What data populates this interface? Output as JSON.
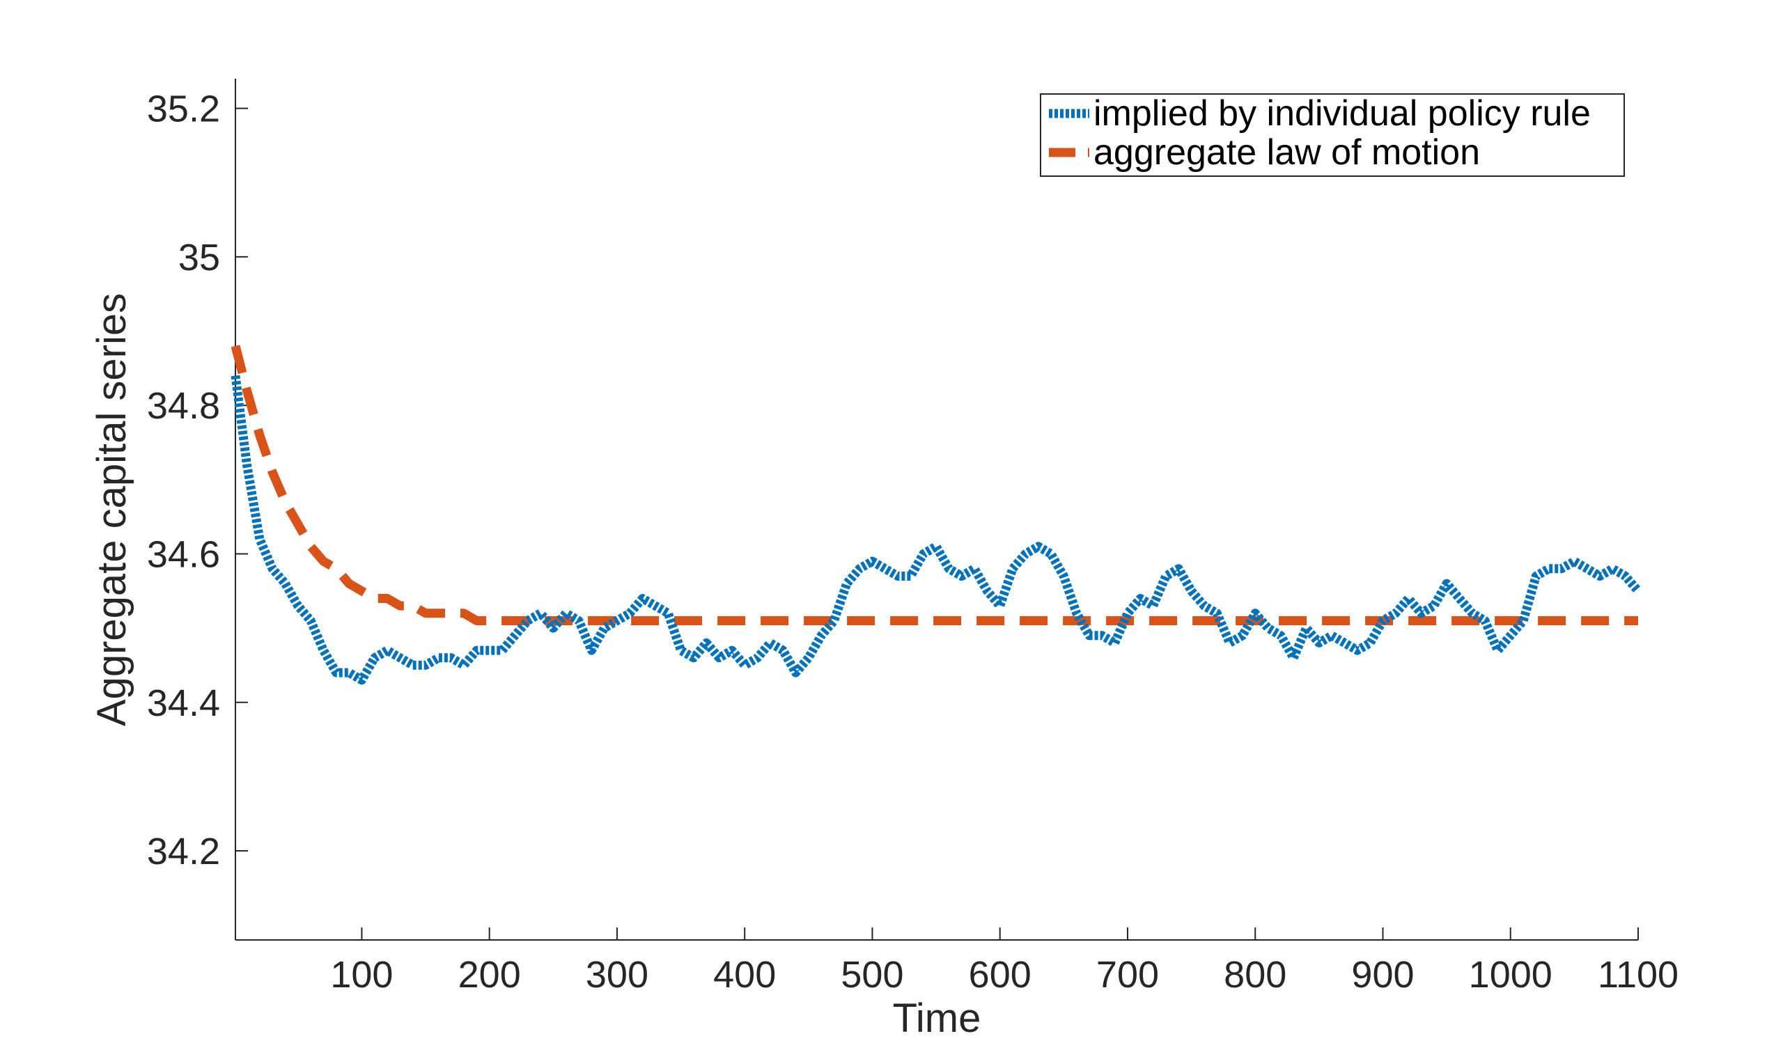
{
  "chart_data": {
    "type": "line",
    "title": "",
    "xlabel": "Time",
    "ylabel": "Aggregate capital series",
    "xlim": [
      1,
      1100
    ],
    "ylim": [
      34.08,
      35.24
    ],
    "xticks": [
      100,
      200,
      300,
      400,
      500,
      600,
      700,
      800,
      900,
      1000,
      1100
    ],
    "xtick_labels": [
      "100",
      "200",
      "300",
      "400",
      "500",
      "600",
      "700",
      "800",
      "900",
      "1000",
      "1100"
    ],
    "yticks": [
      34.2,
      34.4,
      34.6,
      34.8,
      35.0,
      35.2
    ],
    "ytick_labels": [
      "34.2",
      "34.4",
      "34.6",
      "34.8",
      "35",
      "35.2"
    ],
    "grid": false,
    "legend_position": "top-right",
    "series": [
      {
        "name": "implied by individual policy rule",
        "color": "#0072BD",
        "line_style": "dotted",
        "x": [
          1,
          10,
          20,
          30,
          40,
          50,
          60,
          70,
          80,
          90,
          100,
          110,
          120,
          130,
          140,
          150,
          160,
          170,
          180,
          190,
          200,
          210,
          220,
          230,
          240,
          250,
          260,
          270,
          280,
          290,
          300,
          310,
          320,
          330,
          340,
          350,
          360,
          370,
          380,
          390,
          400,
          410,
          420,
          430,
          440,
          450,
          460,
          470,
          480,
          490,
          500,
          510,
          520,
          530,
          540,
          550,
          560,
          570,
          580,
          590,
          600,
          610,
          620,
          630,
          640,
          650,
          660,
          670,
          680,
          690,
          700,
          710,
          720,
          730,
          740,
          750,
          760,
          770,
          780,
          790,
          800,
          810,
          820,
          830,
          840,
          850,
          860,
          870,
          880,
          890,
          900,
          910,
          920,
          930,
          940,
          950,
          960,
          970,
          980,
          990,
          1000,
          1010,
          1020,
          1030,
          1040,
          1050,
          1060,
          1070,
          1080,
          1090,
          1100
        ],
        "values": [
          34.84,
          34.72,
          34.62,
          34.58,
          34.56,
          34.53,
          34.51,
          34.47,
          34.44,
          34.44,
          34.43,
          34.46,
          34.47,
          34.46,
          34.45,
          34.45,
          34.46,
          34.46,
          34.45,
          34.47,
          34.47,
          34.47,
          34.49,
          34.51,
          34.52,
          34.5,
          34.52,
          34.51,
          34.47,
          34.5,
          34.51,
          34.52,
          34.54,
          34.53,
          34.52,
          34.47,
          34.46,
          34.48,
          34.46,
          34.47,
          34.45,
          34.46,
          34.48,
          34.47,
          34.44,
          34.46,
          34.49,
          34.51,
          34.56,
          34.58,
          34.59,
          34.58,
          34.57,
          34.57,
          34.6,
          34.61,
          34.58,
          34.57,
          34.58,
          34.55,
          34.53,
          34.58,
          34.6,
          34.61,
          34.6,
          34.57,
          34.52,
          34.49,
          34.49,
          34.48,
          34.52,
          34.54,
          34.53,
          34.57,
          34.58,
          34.55,
          34.53,
          34.52,
          34.48,
          34.49,
          34.52,
          34.5,
          34.49,
          34.46,
          34.5,
          34.48,
          34.49,
          34.48,
          34.47,
          34.48,
          34.51,
          34.52,
          34.54,
          34.52,
          34.53,
          34.56,
          34.54,
          34.52,
          34.51,
          34.47,
          34.49,
          34.51,
          34.57,
          34.58,
          34.58,
          34.59,
          34.58,
          34.57,
          34.58,
          34.57,
          34.55
        ]
      },
      {
        "name": "aggregate law of motion",
        "color": "#D95319",
        "line_style": "dashed",
        "x": [
          1,
          10,
          20,
          30,
          40,
          50,
          60,
          70,
          80,
          90,
          100,
          110,
          120,
          130,
          140,
          150,
          160,
          170,
          180,
          190,
          200,
          210,
          220,
          230,
          240,
          250,
          260,
          280,
          300,
          400,
          500,
          600,
          700,
          800,
          900,
          1000,
          1100
        ],
        "values": [
          34.88,
          34.82,
          34.76,
          34.71,
          34.67,
          34.64,
          34.61,
          34.59,
          34.58,
          34.56,
          34.55,
          34.54,
          34.54,
          34.53,
          34.53,
          34.52,
          34.52,
          34.52,
          34.52,
          34.51,
          34.51,
          34.51,
          34.51,
          34.51,
          34.51,
          34.51,
          34.51,
          34.51,
          34.51,
          34.51,
          34.51,
          34.51,
          34.51,
          34.51,
          34.51,
          34.51,
          34.51
        ]
      }
    ]
  }
}
